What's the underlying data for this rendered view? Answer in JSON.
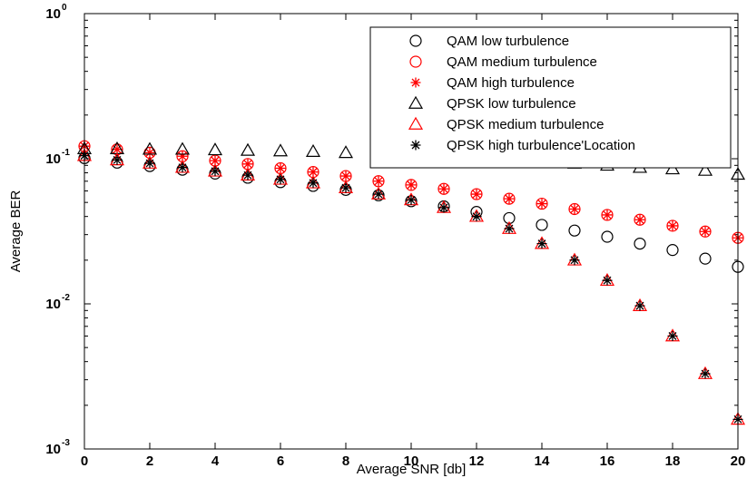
{
  "chart_data": {
    "type": "scatter",
    "title": "",
    "xlabel": "Average SNR [db]",
    "ylabel": "Average BER",
    "xlim": [
      0,
      20
    ],
    "ylim": [
      0.001,
      1
    ],
    "yscale": "log",
    "grid": false,
    "legend_position": "top-right",
    "x_ticks": [
      "0",
      "2",
      "4",
      "6",
      "8",
      "10",
      "12",
      "14",
      "16",
      "18",
      "20"
    ],
    "y_ticks": [
      {
        "base": "10",
        "exp": "0",
        "value": 1
      },
      {
        "base": "10",
        "exp": "-1",
        "value": 0.1
      },
      {
        "base": "10",
        "exp": "-2",
        "value": 0.01
      },
      {
        "base": "10",
        "exp": "-3",
        "value": 0.001
      }
    ],
    "x": [
      0,
      1,
      2,
      3,
      4,
      5,
      6,
      7,
      8,
      9,
      10,
      11,
      12,
      13,
      14,
      15,
      16,
      17,
      18,
      19,
      20
    ],
    "series": [
      {
        "name": "QAM low turbulence",
        "marker": "circle",
        "color": "#000000",
        "values": [
          0.101,
          0.094,
          0.089,
          0.084,
          0.079,
          0.074,
          0.069,
          0.065,
          0.061,
          0.056,
          0.051,
          0.047,
          0.043,
          0.039,
          0.035,
          0.032,
          0.029,
          0.026,
          0.0235,
          0.0205,
          0.018
        ]
      },
      {
        "name": "QAM medium turbulence",
        "marker": "circle",
        "color": "#ff0000",
        "values": [
          0.122,
          0.116,
          0.11,
          0.104,
          0.097,
          0.092,
          0.086,
          0.081,
          0.076,
          0.07,
          0.066,
          0.062,
          0.057,
          0.053,
          0.049,
          0.045,
          0.041,
          0.038,
          0.0345,
          0.0315,
          0.0285
        ]
      },
      {
        "name": "QAM high turbulence",
        "marker": "star",
        "color": "#ff0000",
        "values": [
          0.122,
          0.116,
          0.11,
          0.104,
          0.097,
          0.092,
          0.086,
          0.081,
          0.076,
          0.07,
          0.066,
          0.062,
          0.057,
          0.053,
          0.049,
          0.045,
          0.041,
          0.038,
          0.0345,
          0.0315,
          0.0285
        ]
      },
      {
        "name": "QPSK low turbulence",
        "marker": "triangle",
        "color": "#000000",
        "values": [
          0.117,
          0.117,
          0.116,
          0.116,
          0.115,
          0.114,
          0.113,
          0.112,
          0.11,
          0.108,
          0.106,
          0.104,
          0.101,
          0.098,
          0.095,
          0.093,
          0.09,
          0.087,
          0.085,
          0.083,
          0.078
        ]
      },
      {
        "name": "QPSK medium turbulence",
        "marker": "triangle",
        "color": "#ff0000",
        "values": [
          0.105,
          0.098,
          0.093,
          0.087,
          0.082,
          0.077,
          0.072,
          0.068,
          0.063,
          0.057,
          0.052,
          0.046,
          0.04,
          0.033,
          0.026,
          0.02,
          0.0145,
          0.0097,
          0.006,
          0.0033,
          0.0016
        ]
      },
      {
        "name": "QPSK high turbulence'Location",
        "marker": "star",
        "color": "#000000",
        "values": [
          0.105,
          0.098,
          0.093,
          0.087,
          0.082,
          0.077,
          0.072,
          0.068,
          0.063,
          0.057,
          0.052,
          0.046,
          0.04,
          0.033,
          0.026,
          0.02,
          0.0145,
          0.0097,
          0.006,
          0.0033,
          0.0016
        ]
      }
    ]
  }
}
